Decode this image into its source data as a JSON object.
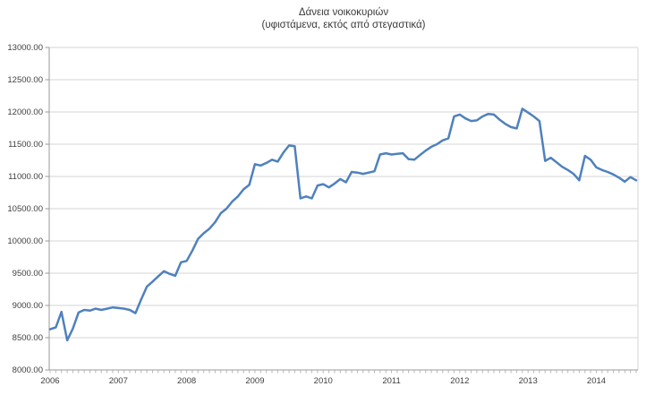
{
  "chart_data": {
    "type": "line",
    "title": "Δάνεια νοικοκυριών",
    "subtitle": "(υφιστάμενα, εκτός από στεγαστικά)",
    "x_unit": "month",
    "start": "2006-01",
    "end": "2014-08",
    "points": 104,
    "x_year_labels": [
      "2006",
      "2007",
      "2008",
      "2009",
      "2010",
      "2011",
      "2012",
      "2013",
      "2014"
    ],
    "ylim": [
      8000,
      13000
    ],
    "y_tick_step": 500,
    "y_tick_format": "0.00",
    "grid": "horizontal",
    "legend": "none",
    "colors": {
      "line": "#4F81BD",
      "grid": "#D6D6D6",
      "axis": "#9A9A9A",
      "minor_tick": "#B5B5B5",
      "text": "#404040"
    },
    "series": [
      {
        "name": "Δάνεια νοικοκυριών (υφιστάμενα, εκτός από στεγαστικά)",
        "color": "#4F81BD",
        "values": [
          8630,
          8660,
          8900,
          8460,
          8640,
          8890,
          8930,
          8920,
          8950,
          8930,
          8950,
          8970,
          8960,
          8950,
          8930,
          8880,
          9090,
          9290,
          9370,
          9450,
          9530,
          9490,
          9460,
          9670,
          9690,
          9850,
          10030,
          10120,
          10190,
          10290,
          10430,
          10500,
          10610,
          10690,
          10800,
          10870,
          11190,
          11170,
          11210,
          11260,
          11230,
          11370,
          11480,
          11470,
          10660,
          10690,
          10660,
          10860,
          10880,
          10830,
          10890,
          10960,
          10910,
          11070,
          11060,
          11040,
          11060,
          11080,
          11340,
          11360,
          11340,
          11350,
          11360,
          11270,
          11260,
          11330,
          11400,
          11460,
          11500,
          11560,
          11590,
          11930,
          11960,
          11900,
          11860,
          11870,
          11930,
          11970,
          11960,
          11880,
          11815,
          11765,
          11745,
          12050,
          11990,
          11930,
          11860,
          11240,
          11290,
          11220,
          11150,
          11100,
          11040,
          10940,
          11320,
          11260,
          11140,
          11100,
          11070,
          11030,
          10980,
          10920,
          10990,
          10940
        ]
      }
    ]
  }
}
